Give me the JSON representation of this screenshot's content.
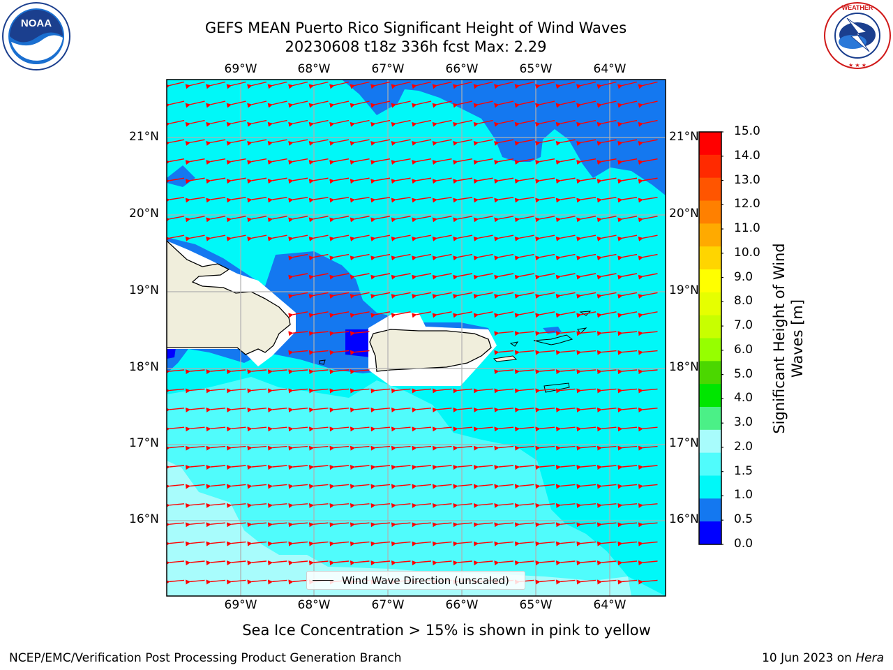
{
  "title": {
    "line1": "GEFS MEAN Puerto Rico Significant Height of Wind Waves",
    "line2": "20230608 t18z 336h fcst   Max: 2.29"
  },
  "map": {
    "lon_labels": [
      "69°W",
      "68°W",
      "67°W",
      "66°W",
      "65°W",
      "64°W"
    ],
    "lat_labels": [
      "21°N",
      "20°N",
      "19°N",
      "18°N",
      "17°N",
      "16°N"
    ],
    "legend_text": "Wind Wave Direction (unscaled)",
    "colors": {
      "land": "#f0eedc",
      "arrow": "#ff0000",
      "grid": "#b0b0b0"
    }
  },
  "colorbar": {
    "title_line1": "Significant Height of Wind",
    "title_line2": "Waves [m]",
    "ticks": [
      "15.0",
      "14.0",
      "13.0",
      "12.0",
      "11.0",
      "10.0",
      "9.0",
      "8.0",
      "7.0",
      "6.0",
      "5.0",
      "4.0",
      "3.0",
      "2.0",
      "1.5",
      "1.0",
      "0.5",
      "0.0"
    ],
    "colors_top_to_bottom": [
      "#ff0000",
      "#ff2a00",
      "#ff5500",
      "#ff8000",
      "#ffaa00",
      "#ffd500",
      "#ffff00",
      "#e6ff00",
      "#c8ff00",
      "#96ff00",
      "#4bd700",
      "#00e600",
      "#4bf087",
      "#a8fcfc",
      "#50fcfc",
      "#00f8f8",
      "#1478f0",
      "#0000ff"
    ]
  },
  "subtitle": "Sea Ice Concentration > 15% is shown in pink to yellow",
  "footer": {
    "left": "NCEP/EMC/Verification Post Processing Product Generation Branch",
    "right_date": "10 Jun 2023 on ",
    "right_machine": "Hera"
  },
  "logos": {
    "noaa": "NOAA",
    "nws": "NATIONAL WEATHER SERVICE"
  }
}
